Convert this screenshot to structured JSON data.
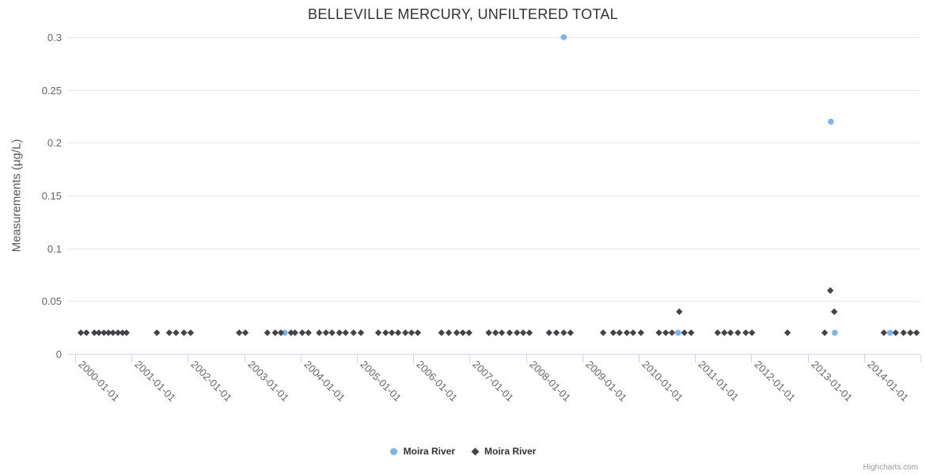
{
  "title": "BELLEVILLE MERCURY, UNFILTERED TOTAL",
  "credits": "Highcharts.com",
  "chart_data": {
    "type": "scatter",
    "title": "BELLEVILLE MERCURY, UNFILTERED TOTAL",
    "xlabel": "",
    "ylabel": "Measurements (µg/L)",
    "y_unit": "µg/L",
    "x_unit": "decimal_year",
    "ylim": [
      0,
      0.3
    ],
    "xlim": [
      1999.86,
      2015.0
    ],
    "grid": "horizontal-only",
    "legend_position": "bottom-center",
    "yticks": [
      {
        "value": 0,
        "label": "0"
      },
      {
        "value": 0.05,
        "label": "0.05"
      },
      {
        "value": 0.1,
        "label": "0.1"
      },
      {
        "value": 0.15,
        "label": "0.15"
      },
      {
        "value": 0.2,
        "label": "0.2"
      },
      {
        "value": 0.25,
        "label": "0.25"
      },
      {
        "value": 0.3,
        "label": "0.3"
      }
    ],
    "xticks": [
      {
        "value": 2000,
        "label": "2000-01-01"
      },
      {
        "value": 2001,
        "label": "2001-01-01"
      },
      {
        "value": 2002,
        "label": "2002-01-01"
      },
      {
        "value": 2003,
        "label": "2003-01-01"
      },
      {
        "value": 2004,
        "label": "2004-01-01"
      },
      {
        "value": 2005,
        "label": "2005-01-01"
      },
      {
        "value": 2006,
        "label": "2006-01-01"
      },
      {
        "value": 2007,
        "label": "2007-01-01"
      },
      {
        "value": 2008,
        "label": "2008-01-01"
      },
      {
        "value": 2009,
        "label": "2009-01-01"
      },
      {
        "value": 2010,
        "label": "2010-01-01"
      },
      {
        "value": 2011,
        "label": "2011-01-01"
      },
      {
        "value": 2012,
        "label": "2012-01-01"
      },
      {
        "value": 2013,
        "label": "2013-01-01"
      },
      {
        "value": 2014,
        "label": "2014-01-01"
      },
      {
        "value": 2015,
        "label": ""
      }
    ],
    "series": [
      {
        "name": "Moira River",
        "marker": "circle",
        "color": "#7cb5ec",
        "points": [
          [
            2003.72,
            0.02
          ],
          [
            2008.67,
            0.3
          ],
          [
            2010.7,
            0.02
          ],
          [
            2013.41,
            0.22
          ],
          [
            2013.48,
            0.02
          ],
          [
            2014.46,
            0.02
          ]
        ]
      },
      {
        "name": "Moira River",
        "marker": "diamond",
        "color": "#434348",
        "points": [
          [
            2000.1,
            0.02
          ],
          [
            2000.2,
            0.02
          ],
          [
            2000.34,
            0.02
          ],
          [
            2000.42,
            0.02
          ],
          [
            2000.51,
            0.02
          ],
          [
            2000.59,
            0.02
          ],
          [
            2000.67,
            0.02
          ],
          [
            2000.76,
            0.02
          ],
          [
            2000.84,
            0.02
          ],
          [
            2000.91,
            0.02
          ],
          [
            2001.45,
            0.02
          ],
          [
            2001.67,
            0.02
          ],
          [
            2001.79,
            0.02
          ],
          [
            2001.93,
            0.02
          ],
          [
            2002.05,
            0.02
          ],
          [
            2002.91,
            0.02
          ],
          [
            2003.02,
            0.02
          ],
          [
            2003.41,
            0.02
          ],
          [
            2003.55,
            0.02
          ],
          [
            2003.65,
            0.02
          ],
          [
            2003.83,
            0.02
          ],
          [
            2003.9,
            0.02
          ],
          [
            2004.03,
            0.02
          ],
          [
            2004.14,
            0.02
          ],
          [
            2004.33,
            0.02
          ],
          [
            2004.45,
            0.02
          ],
          [
            2004.56,
            0.02
          ],
          [
            2004.69,
            0.02
          ],
          [
            2004.8,
            0.02
          ],
          [
            2004.94,
            0.02
          ],
          [
            2005.07,
            0.02
          ],
          [
            2005.38,
            0.02
          ],
          [
            2005.51,
            0.02
          ],
          [
            2005.62,
            0.02
          ],
          [
            2005.73,
            0.02
          ],
          [
            2005.86,
            0.02
          ],
          [
            2005.97,
            0.02
          ],
          [
            2006.08,
            0.02
          ],
          [
            2006.5,
            0.02
          ],
          [
            2006.63,
            0.02
          ],
          [
            2006.77,
            0.02
          ],
          [
            2006.88,
            0.02
          ],
          [
            2006.99,
            0.02
          ],
          [
            2007.34,
            0.02
          ],
          [
            2007.46,
            0.02
          ],
          [
            2007.57,
            0.02
          ],
          [
            2007.71,
            0.02
          ],
          [
            2007.84,
            0.02
          ],
          [
            2007.95,
            0.02
          ],
          [
            2008.06,
            0.02
          ],
          [
            2008.41,
            0.02
          ],
          [
            2008.54,
            0.02
          ],
          [
            2008.67,
            0.02
          ],
          [
            2008.79,
            0.02
          ],
          [
            2009.37,
            0.02
          ],
          [
            2009.55,
            0.02
          ],
          [
            2009.66,
            0.02
          ],
          [
            2009.79,
            0.02
          ],
          [
            2009.9,
            0.02
          ],
          [
            2010.04,
            0.02
          ],
          [
            2010.36,
            0.02
          ],
          [
            2010.48,
            0.02
          ],
          [
            2010.59,
            0.02
          ],
          [
            2010.72,
            0.04
          ],
          [
            2010.81,
            0.02
          ],
          [
            2010.93,
            0.02
          ],
          [
            2011.4,
            0.02
          ],
          [
            2011.52,
            0.02
          ],
          [
            2011.63,
            0.02
          ],
          [
            2011.76,
            0.02
          ],
          [
            2011.9,
            0.02
          ],
          [
            2012.01,
            0.02
          ],
          [
            2012.64,
            0.02
          ],
          [
            2013.3,
            0.02
          ],
          [
            2013.4,
            0.06
          ],
          [
            2013.47,
            0.04
          ],
          [
            2014.35,
            0.02
          ],
          [
            2014.56,
            0.02
          ],
          [
            2014.7,
            0.02
          ],
          [
            2014.82,
            0.02
          ],
          [
            2014.93,
            0.02
          ]
        ]
      }
    ]
  }
}
